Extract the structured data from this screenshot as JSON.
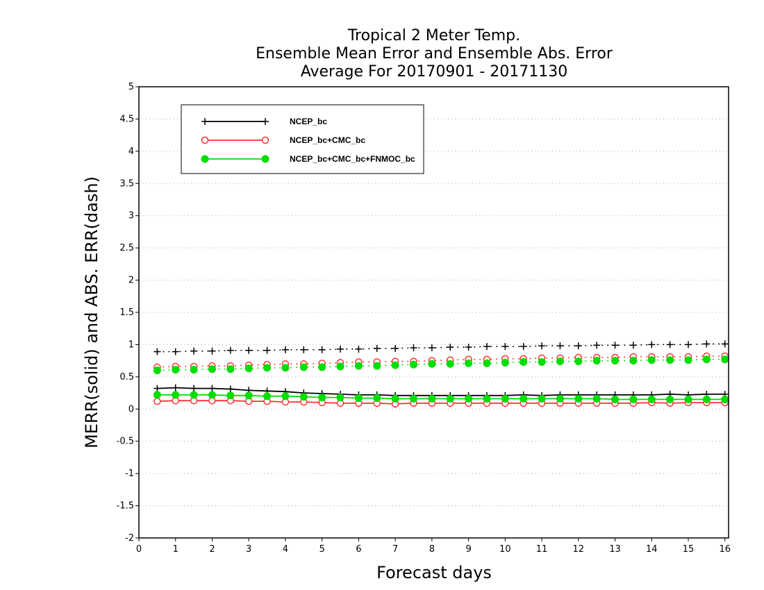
{
  "chart_data": {
    "type": "line",
    "title": [
      "Tropical 2 Meter Temp.",
      "Ensemble Mean Error and Ensemble Abs. Error",
      "Average For 20170901 - 20171130"
    ],
    "xlabel": "Forecast days",
    "ylabel": "MERR(solid) and ABS. ERR(dash)",
    "xlim": [
      0,
      16.1
    ],
    "ylim": [
      -2,
      5
    ],
    "xticks": [
      0,
      1,
      2,
      3,
      4,
      5,
      6,
      7,
      8,
      9,
      10,
      11,
      12,
      13,
      14,
      15,
      16
    ],
    "yticks": [
      -2,
      -1.5,
      -1,
      -0.5,
      0,
      0.5,
      1,
      1.5,
      2,
      2.5,
      3,
      3.5,
      4,
      4.5,
      5
    ],
    "ytick_labels": [
      "-2",
      "-1.5",
      "-1",
      "-0.5",
      "0",
      "0.5",
      "1",
      "1.5",
      "2",
      "2.5",
      "3",
      "3.5",
      "4",
      "4.5",
      "5"
    ],
    "grid": "horizontal dotted",
    "legend_position": "top-left",
    "x": [
      0.5,
      1,
      1.5,
      2,
      2.5,
      3,
      3.5,
      4,
      4.5,
      5,
      5.5,
      6,
      6.5,
      7,
      7.5,
      8,
      8.5,
      9,
      9.5,
      10,
      10.5,
      11,
      11.5,
      12,
      12.5,
      13,
      13.5,
      14,
      14.5,
      15,
      15.5,
      16
    ],
    "series": [
      {
        "name": "NCEP_bc",
        "color": "#000000",
        "marker": "plus",
        "merr": [
          0.32,
          0.33,
          0.32,
          0.32,
          0.31,
          0.29,
          0.28,
          0.27,
          0.25,
          0.24,
          0.23,
          0.22,
          0.22,
          0.21,
          0.21,
          0.21,
          0.21,
          0.21,
          0.21,
          0.21,
          0.22,
          0.21,
          0.22,
          0.22,
          0.22,
          0.22,
          0.22,
          0.22,
          0.23,
          0.22,
          0.23,
          0.23
        ],
        "abs_err": [
          0.89,
          0.89,
          0.9,
          0.9,
          0.91,
          0.91,
          0.91,
          0.92,
          0.92,
          0.92,
          0.93,
          0.93,
          0.94,
          0.94,
          0.95,
          0.95,
          0.96,
          0.96,
          0.97,
          0.97,
          0.97,
          0.98,
          0.98,
          0.98,
          0.99,
          0.99,
          0.99,
          1.0,
          1.0,
          1.0,
          1.01,
          1.01
        ]
      },
      {
        "name": "NCEP_bc+CMC_bc",
        "color": "#ff3030",
        "marker": "open-circle",
        "merr": [
          0.12,
          0.13,
          0.13,
          0.13,
          0.13,
          0.12,
          0.12,
          0.11,
          0.11,
          0.1,
          0.09,
          0.09,
          0.09,
          0.08,
          0.09,
          0.09,
          0.09,
          0.09,
          0.09,
          0.09,
          0.09,
          0.09,
          0.09,
          0.09,
          0.09,
          0.09,
          0.09,
          0.1,
          0.09,
          0.1,
          0.1,
          0.1
        ],
        "abs_err": [
          0.65,
          0.66,
          0.66,
          0.67,
          0.67,
          0.68,
          0.69,
          0.7,
          0.7,
          0.71,
          0.72,
          0.73,
          0.73,
          0.74,
          0.74,
          0.75,
          0.76,
          0.77,
          0.77,
          0.78,
          0.78,
          0.79,
          0.79,
          0.8,
          0.8,
          0.8,
          0.81,
          0.81,
          0.81,
          0.81,
          0.82,
          0.82
        ]
      },
      {
        "name": "NCEP_bc+CMC_bc+FNMOC_bc",
        "color": "#00dd00",
        "marker": "filled-circle",
        "merr": [
          0.22,
          0.22,
          0.22,
          0.22,
          0.21,
          0.21,
          0.2,
          0.2,
          0.19,
          0.18,
          0.18,
          0.17,
          0.17,
          0.16,
          0.16,
          0.16,
          0.16,
          0.16,
          0.16,
          0.16,
          0.16,
          0.16,
          0.16,
          0.16,
          0.16,
          0.15,
          0.15,
          0.15,
          0.15,
          0.15,
          0.15,
          0.15
        ],
        "abs_err": [
          0.6,
          0.61,
          0.61,
          0.62,
          0.62,
          0.63,
          0.64,
          0.64,
          0.65,
          0.65,
          0.66,
          0.67,
          0.67,
          0.68,
          0.69,
          0.7,
          0.7,
          0.71,
          0.71,
          0.72,
          0.73,
          0.73,
          0.74,
          0.74,
          0.75,
          0.75,
          0.75,
          0.76,
          0.76,
          0.76,
          0.77,
          0.77
        ]
      }
    ]
  }
}
